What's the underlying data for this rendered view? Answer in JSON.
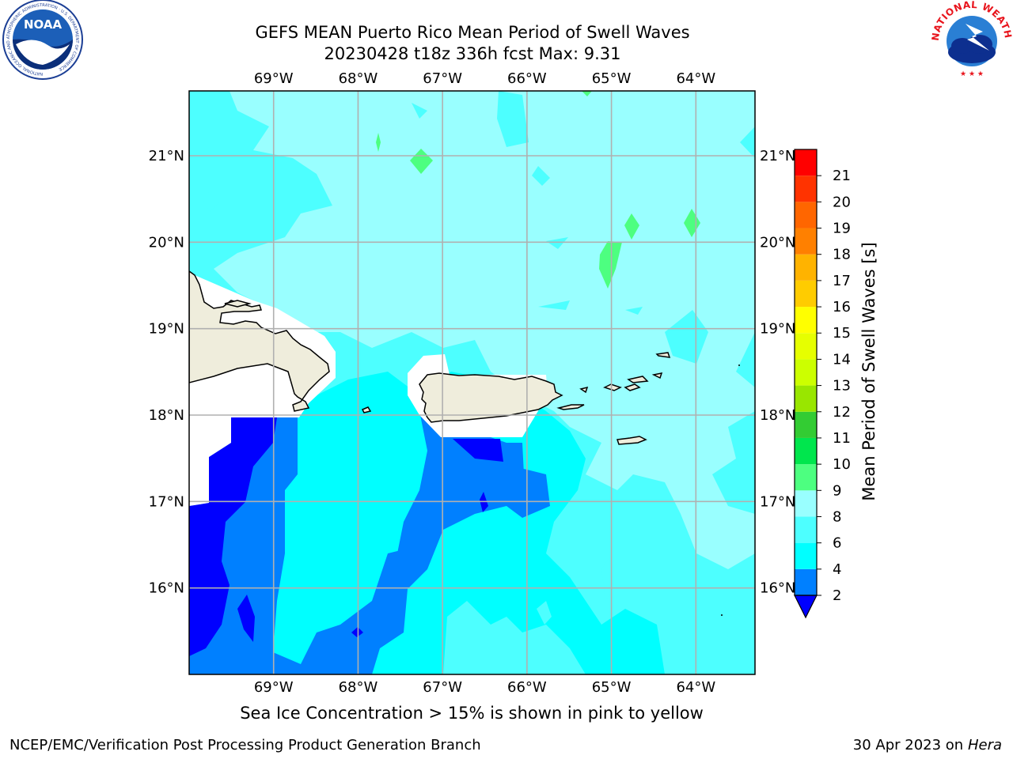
{
  "header": {
    "title_line1": "GEFS MEAN Puerto Rico Mean Period of Swell Waves",
    "title_line2": "20230428 t18z 336h fcst   Max: 9.31"
  },
  "map": {
    "lon_labels": [
      "69°W",
      "68°W",
      "67°W",
      "66°W",
      "65°W",
      "64°W"
    ],
    "lat_labels": [
      "21°N",
      "20°N",
      "19°N",
      "18°N",
      "17°N",
      "16°N"
    ],
    "lon_range": [
      -70.0,
      -63.3
    ],
    "lat_range": [
      15.0,
      21.75
    ],
    "gridlines": true,
    "land_color": "#efeddc",
    "coastline_color": "#000000"
  },
  "colorbar": {
    "label": "Mean Period of Swell Waves [s]",
    "levels": [
      2,
      4,
      6,
      8,
      9,
      10,
      11,
      12,
      13,
      14,
      15,
      16,
      17,
      18,
      19,
      20,
      21
    ],
    "tick_labels": [
      "2",
      "4",
      "6",
      "8",
      "9",
      "10",
      "11",
      "12",
      "13",
      "14",
      "15",
      "16",
      "17",
      "18",
      "19",
      "20",
      "21"
    ],
    "colors": [
      "#0080ff",
      "#00ffff",
      "#4dffff",
      "#99ffff",
      "#4dff80",
      "#00e64d",
      "#33cc33",
      "#99e600",
      "#ccff00",
      "#e6ff00",
      "#ffff00",
      "#ffcc00",
      "#ffb300",
      "#ff8000",
      "#ff6600",
      "#ff3300",
      "#ff0000"
    ],
    "under_color": "#0000ff"
  },
  "subtitle": "Sea Ice Concentration > 15% is shown in pink to yellow",
  "footer": {
    "left": "NCEP/EMC/Verification Post Processing Product Generation Branch",
    "right_date": "30 Apr 2023 on ",
    "right_machine": "Hera"
  },
  "logos": {
    "noaa_text": "NOAA",
    "noaa_ring_text": "NATIONAL OCEANIC AND ATMOSPHERIC ADMINISTRATION · U.S. DEPARTMENT OF COMMERCE",
    "nws_ring_text": "NATIONAL WEATHER SERVICE"
  }
}
